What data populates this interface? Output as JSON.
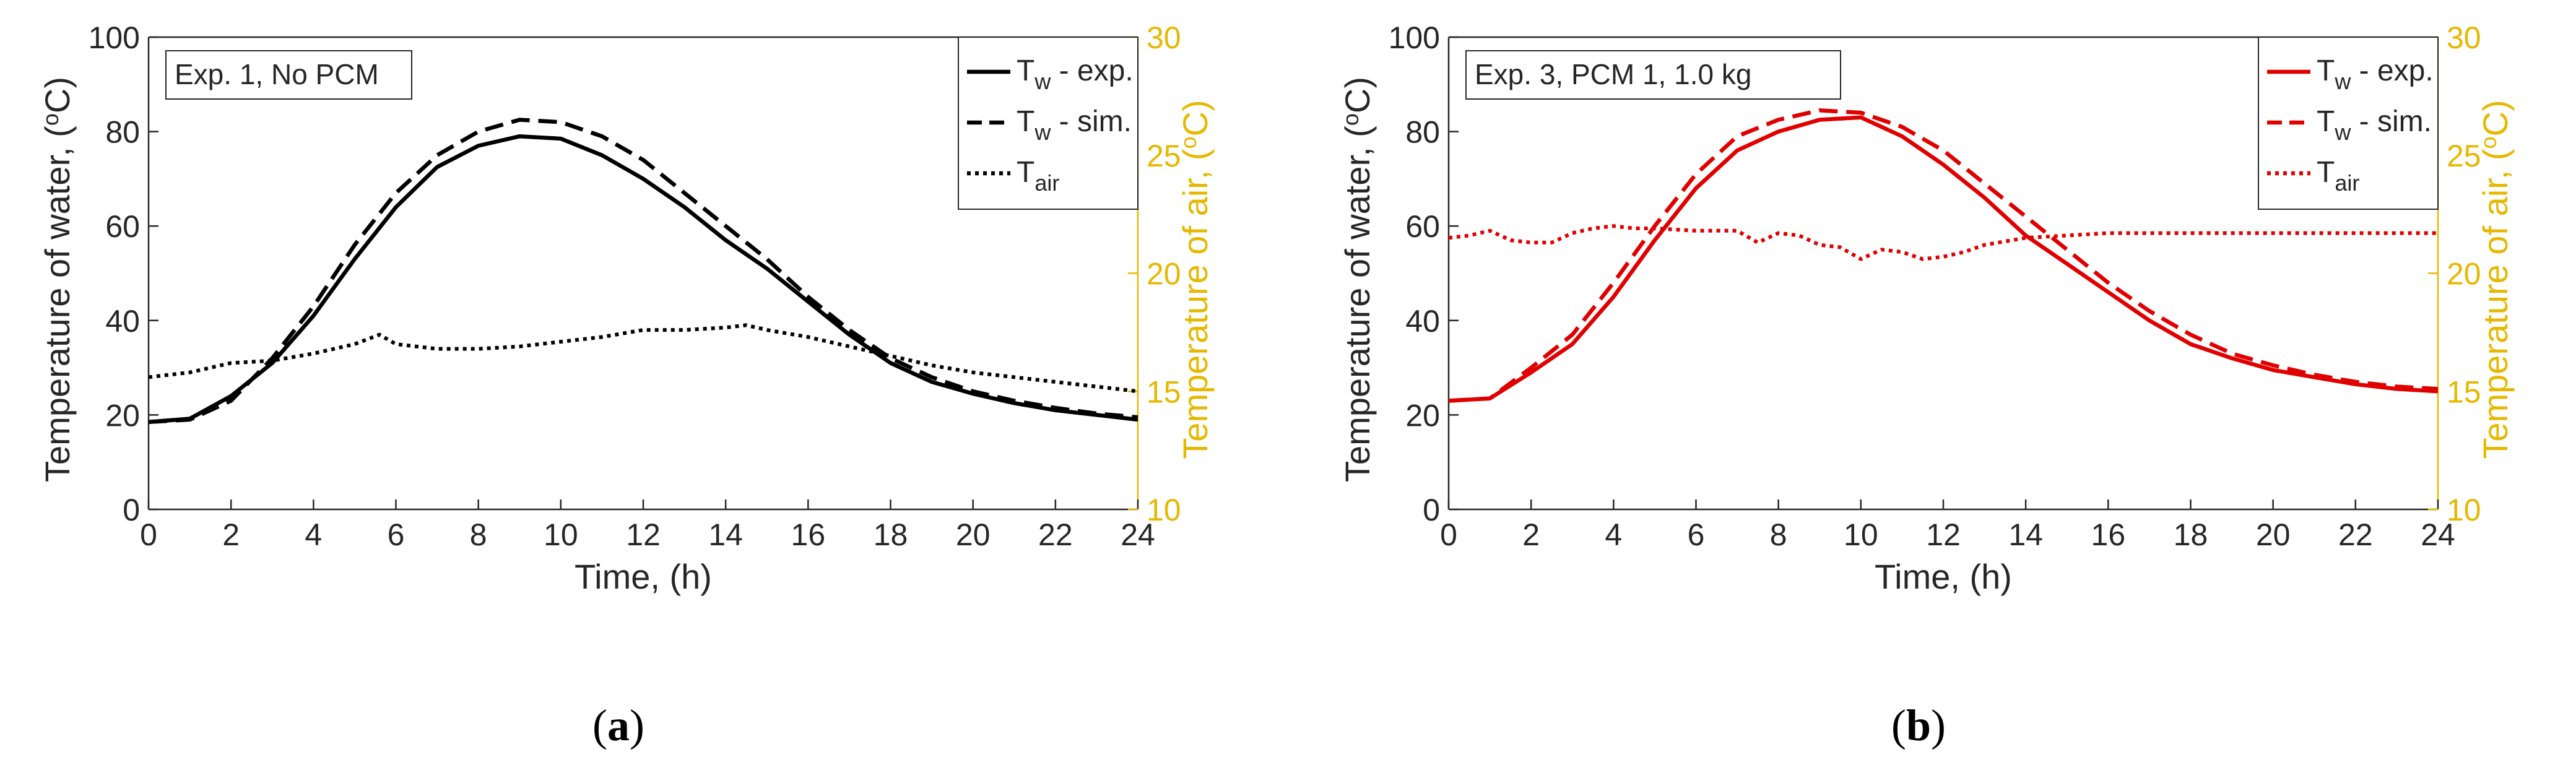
{
  "chart_data": [
    {
      "type": "line",
      "panel_label_open": "(",
      "panel_label": "a",
      "panel_label_close": ")",
      "annotation": "Exp. 1, No PCM",
      "xlabel": "Time, (h)",
      "ylabel_text": "Temperature of water, (",
      "ylabel_sup": "o",
      "ylabel_end": "C)",
      "y2label_text": "Temperature of air, (",
      "y2label_sup": "o",
      "y2label_end": "C)",
      "xlim": [
        0,
        24
      ],
      "ylim": [
        0,
        100
      ],
      "y2lim": [
        10,
        30
      ],
      "x_ticks": [
        "0",
        "2",
        "4",
        "6",
        "8",
        "10",
        "12",
        "14",
        "16",
        "18",
        "20",
        "22",
        "24"
      ],
      "y_ticks": [
        "0",
        "20",
        "40",
        "60",
        "80",
        "100"
      ],
      "y2_ticks": [
        "10",
        "15",
        "20",
        "25",
        "30"
      ],
      "grid": false,
      "legend_position": "top-right",
      "colors": {
        "series": "#000000",
        "right_axis": "#e6b800"
      },
      "series": [
        {
          "legend_main": "T",
          "legend_sub": "w",
          "legend_rest": " - exp.",
          "line_style": "solid",
          "axis": "left",
          "x": [
            0,
            1,
            2,
            3,
            4,
            5,
            6,
            7,
            8,
            9,
            10,
            11,
            12,
            13,
            14,
            15,
            16,
            17,
            18,
            19,
            20,
            21,
            22,
            23,
            24
          ],
          "values": [
            18.5,
            19.2,
            24,
            31,
            41,
            53,
            64,
            72.5,
            77,
            79,
            78.5,
            75,
            70,
            64,
            57,
            51,
            44,
            37,
            31,
            27,
            24.5,
            22.5,
            21,
            20,
            19
          ]
        },
        {
          "legend_main": "T",
          "legend_sub": "w",
          "legend_rest": " - sim.",
          "line_style": "dashed",
          "axis": "left",
          "x": [
            0,
            1,
            2,
            3,
            4,
            5,
            6,
            7,
            8,
            9,
            10,
            11,
            12,
            13,
            14,
            15,
            16,
            17,
            18,
            19,
            20,
            21,
            22,
            23,
            24
          ],
          "values": [
            18.5,
            19,
            23,
            32,
            43,
            56,
            67,
            75,
            80,
            82.5,
            82,
            79,
            74,
            67,
            60,
            53,
            45,
            38,
            32,
            28,
            25,
            23,
            21.5,
            20.3,
            19.5
          ]
        },
        {
          "legend_main": "T",
          "legend_sub": "air",
          "legend_rest": "",
          "line_style": "dotted",
          "axis": "right",
          "x": [
            0,
            1,
            2,
            3,
            4,
            5,
            5.6,
            6,
            6.5,
            7,
            8,
            9,
            10,
            11,
            12,
            13,
            14,
            14.5,
            15,
            16,
            17,
            18,
            19,
            20,
            21,
            22,
            23,
            24
          ],
          "values": [
            15.6,
            15.8,
            16.2,
            16.3,
            16.6,
            17.0,
            17.4,
            17.0,
            16.9,
            16.8,
            16.8,
            16.9,
            17.1,
            17.3,
            17.6,
            17.6,
            17.7,
            17.8,
            17.6,
            17.3,
            16.9,
            16.5,
            16.1,
            15.8,
            15.6,
            15.4,
            15.2,
            15.0
          ]
        }
      ]
    },
    {
      "type": "line",
      "panel_label_open": "(",
      "panel_label": "b",
      "panel_label_close": ")",
      "annotation": "Exp. 3, PCM 1, 1.0 kg",
      "xlabel": "Time, (h)",
      "ylabel_text": "Temperature of water, (",
      "ylabel_sup": "o",
      "ylabel_end": "C)",
      "y2label_text": "Temperature of air, (",
      "y2label_sup": "o",
      "y2label_end": "C)",
      "xlim": [
        0,
        24
      ],
      "ylim": [
        0,
        100
      ],
      "y2lim": [
        10,
        30
      ],
      "x_ticks": [
        "0",
        "2",
        "4",
        "6",
        "8",
        "10",
        "12",
        "14",
        "16",
        "18",
        "20",
        "22",
        "24"
      ],
      "y_ticks": [
        "0",
        "20",
        "40",
        "60",
        "80",
        "100"
      ],
      "y2_ticks": [
        "10",
        "15",
        "20",
        "25",
        "30"
      ],
      "grid": false,
      "legend_position": "top-right",
      "colors": {
        "series": "#e00000",
        "right_axis": "#e6b800"
      },
      "series": [
        {
          "legend_main": "T",
          "legend_sub": "w",
          "legend_rest": " - exp.",
          "line_style": "solid",
          "axis": "left",
          "x": [
            0,
            1,
            2,
            3,
            4,
            5,
            6,
            7,
            8,
            9,
            10,
            11,
            12,
            13,
            14,
            15,
            16,
            17,
            18,
            19,
            20,
            21,
            22,
            23,
            24
          ],
          "values": [
            23,
            23.5,
            29,
            35,
            45,
            57,
            68,
            76,
            80,
            82.5,
            83,
            79,
            73,
            66,
            58,
            52,
            46,
            40,
            35,
            32,
            29.5,
            28,
            26.5,
            25.5,
            25
          ]
        },
        {
          "legend_main": "T",
          "legend_sub": "w",
          "legend_rest": " - sim.",
          "line_style": "dashed",
          "axis": "left",
          "x": [
            0,
            1,
            2,
            3,
            4,
            5,
            6,
            7,
            8,
            9,
            10,
            11,
            12,
            13,
            14,
            15,
            16,
            17,
            18,
            19,
            20,
            21,
            22,
            23,
            24
          ],
          "values": [
            23,
            23.5,
            30,
            37,
            48,
            60,
            71,
            79,
            82.5,
            84.5,
            84,
            81,
            76,
            69,
            62,
            55,
            48,
            42,
            37,
            33,
            30.5,
            28.5,
            27,
            26,
            25.5
          ]
        },
        {
          "legend_main": "T",
          "legend_sub": "air",
          "legend_rest": "",
          "line_style": "dotted",
          "axis": "right",
          "x": [
            0,
            0.5,
            1,
            1.5,
            2,
            2.5,
            3,
            3.5,
            4,
            4.5,
            5,
            6,
            7,
            7.5,
            8,
            8.5,
            9,
            9.5,
            10,
            10.5,
            11,
            11.5,
            12,
            12.5,
            13,
            14,
            15,
            16,
            17,
            18,
            19,
            20,
            21,
            22,
            23,
            24
          ],
          "values": [
            21.5,
            21.6,
            21.8,
            21.4,
            21.3,
            21.3,
            21.7,
            21.9,
            22.0,
            21.9,
            21.9,
            21.8,
            21.8,
            21.3,
            21.7,
            21.6,
            21.2,
            21.1,
            20.6,
            21.0,
            20.9,
            20.6,
            20.7,
            20.9,
            21.2,
            21.5,
            21.6,
            21.7,
            21.7,
            21.7,
            21.7,
            21.7,
            21.7,
            21.7,
            21.7,
            21.7
          ]
        }
      ]
    }
  ]
}
